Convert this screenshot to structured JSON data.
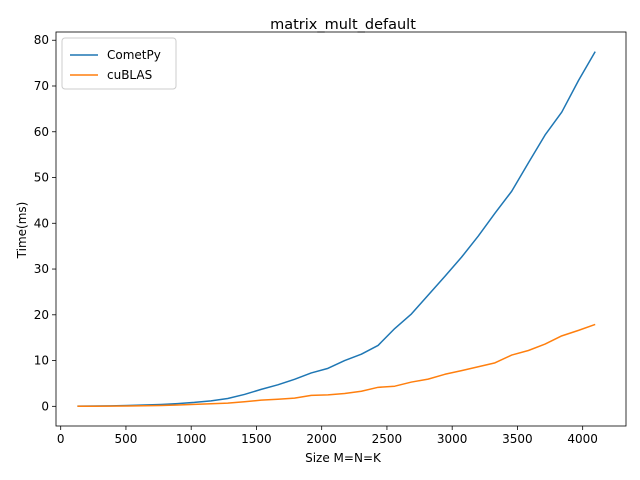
{
  "chart_data": {
    "type": "line",
    "title": "matrix_mult_default",
    "xlabel": "Size M=N=K",
    "ylabel": "Time(ms)",
    "xlim": [
      -36,
      4332
    ],
    "ylim": [
      -4.3,
      81.8
    ],
    "xticks": [
      0,
      500,
      1000,
      1500,
      2000,
      2500,
      3000,
      3500,
      4000
    ],
    "yticks": [
      0,
      10,
      20,
      30,
      40,
      50,
      60,
      70,
      80
    ],
    "grid": false,
    "legend_position": "top-left",
    "series": [
      {
        "name": "CometPy",
        "color": "#1f77b4",
        "points": [
          [
            128,
            0.05
          ],
          [
            256,
            0.07
          ],
          [
            384,
            0.1
          ],
          [
            512,
            0.18
          ],
          [
            640,
            0.28
          ],
          [
            768,
            0.4
          ],
          [
            896,
            0.6
          ],
          [
            1024,
            0.85
          ],
          [
            1152,
            1.2
          ],
          [
            1280,
            1.7
          ],
          [
            1408,
            2.6
          ],
          [
            1536,
            3.7
          ],
          [
            1664,
            4.7
          ],
          [
            1792,
            5.9
          ],
          [
            1920,
            7.3
          ],
          [
            2048,
            8.3
          ],
          [
            2176,
            10.0
          ],
          [
            2304,
            11.4
          ],
          [
            2432,
            13.3
          ],
          [
            2560,
            17.0
          ],
          [
            2688,
            20.2
          ],
          [
            2816,
            24.3
          ],
          [
            2944,
            28.4
          ],
          [
            3072,
            32.6
          ],
          [
            3200,
            37.2
          ],
          [
            3328,
            42.2
          ],
          [
            3456,
            47.0
          ],
          [
            3584,
            53.2
          ],
          [
            3712,
            59.3
          ],
          [
            3840,
            64.3
          ],
          [
            3968,
            71.2
          ],
          [
            4096,
            77.5
          ]
        ]
      },
      {
        "name": "cuBLAS",
        "color": "#ff7f0e",
        "points": [
          [
            128,
            0.02
          ],
          [
            256,
            0.03
          ],
          [
            384,
            0.05
          ],
          [
            512,
            0.08
          ],
          [
            640,
            0.12
          ],
          [
            768,
            0.18
          ],
          [
            896,
            0.3
          ],
          [
            1024,
            0.42
          ],
          [
            1152,
            0.55
          ],
          [
            1280,
            0.7
          ],
          [
            1408,
            1.0
          ],
          [
            1536,
            1.35
          ],
          [
            1664,
            1.55
          ],
          [
            1792,
            1.8
          ],
          [
            1920,
            2.4
          ],
          [
            2048,
            2.5
          ],
          [
            2176,
            2.8
          ],
          [
            2304,
            3.3
          ],
          [
            2432,
            4.15
          ],
          [
            2560,
            4.4
          ],
          [
            2688,
            5.3
          ],
          [
            2816,
            5.95
          ],
          [
            2944,
            7.0
          ],
          [
            3072,
            7.8
          ],
          [
            3200,
            8.65
          ],
          [
            3328,
            9.5
          ],
          [
            3456,
            11.2
          ],
          [
            3584,
            12.2
          ],
          [
            3712,
            13.6
          ],
          [
            3840,
            15.4
          ],
          [
            3968,
            16.6
          ],
          [
            4096,
            17.9
          ]
        ]
      }
    ]
  }
}
